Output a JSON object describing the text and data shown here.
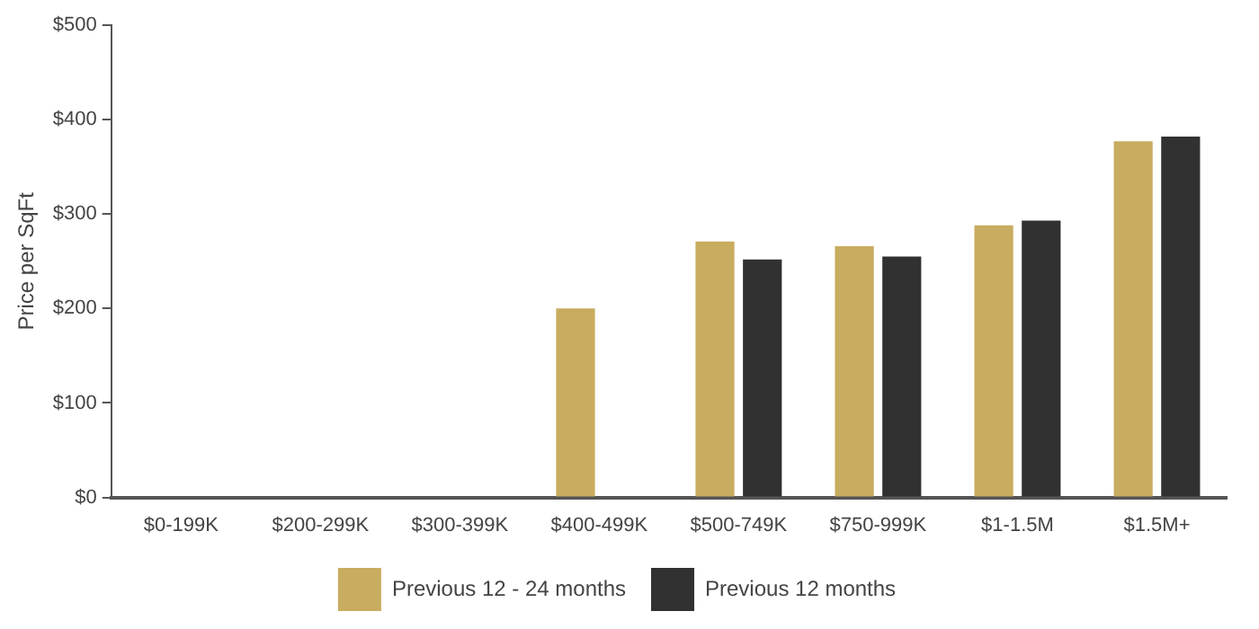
{
  "chart_data": {
    "type": "bar",
    "ylabel": "Price per SqFt",
    "categories": [
      "$0-199K",
      "$200-299K",
      "$300-399K",
      "$400-499K",
      "$500-749K",
      "$750-999K",
      "$1-1.5M",
      "$1.5M+"
    ],
    "series": [
      {
        "name": "Previous 12 - 24 months",
        "color": "#c8ac5f",
        "values": [
          null,
          null,
          null,
          200,
          271,
          266,
          288,
          377
        ]
      },
      {
        "name": "Previous 12 months",
        "color": "#313131",
        "values": [
          null,
          null,
          null,
          null,
          252,
          255,
          293,
          382
        ]
      }
    ],
    "ylim": [
      0,
      500
    ],
    "yticks": [
      {
        "value": 0,
        "label": "$0"
      },
      {
        "value": 100,
        "label": "$100"
      },
      {
        "value": 200,
        "label": "$200"
      },
      {
        "value": 300,
        "label": "$300"
      },
      {
        "value": 400,
        "label": "$400"
      },
      {
        "value": 500,
        "label": "$500"
      }
    ],
    "grid": false,
    "legend": "bottom"
  }
}
